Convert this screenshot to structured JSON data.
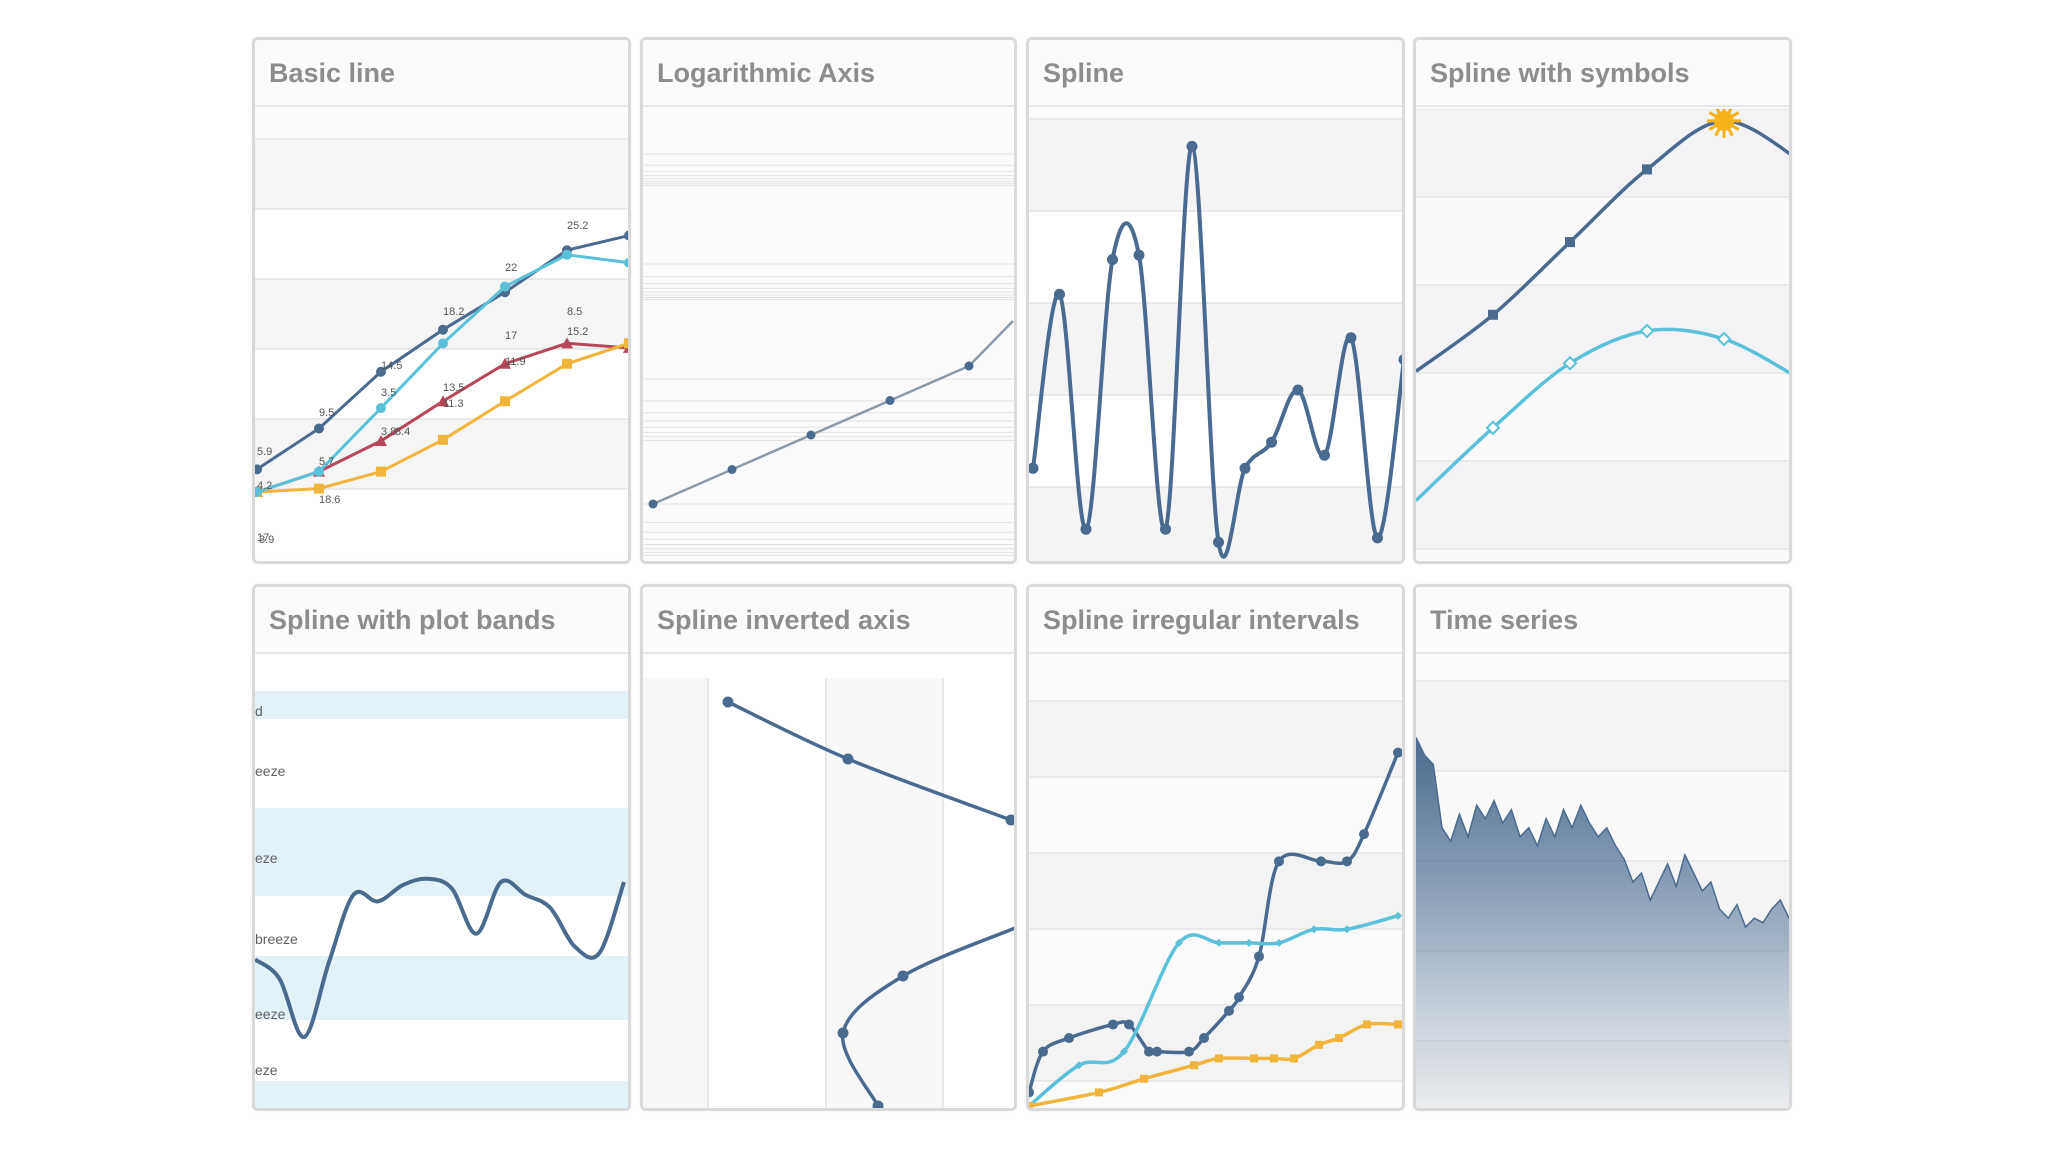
{
  "colors": {
    "navy": "#4a6a8f",
    "cyan": "#5bc0d8",
    "gold": "#f2b53c",
    "red": "#b5475a",
    "gray_line": "#8a9aa8",
    "band": "#e3f2f8",
    "sun": "#f5b21a"
  },
  "chart_data": [
    {
      "id": "basic",
      "type": "line",
      "title": "Basic line",
      "x": [
        0,
        1,
        2,
        3,
        4,
        5,
        6
      ],
      "ylim": [
        -2,
        35
      ],
      "grid": true,
      "series": [
        {
          "values": [
            3.9,
            5.7,
            8.4,
            11.9,
            15.2,
            17.0,
            16.6
          ],
          "marker": "triangle",
          "color": "#b5475a"
        },
        {
          "values": [
            3.9,
            4.2,
            5.7,
            8.5,
            11.9,
            15.2,
            17.0
          ],
          "marker": "square",
          "color": "#f2b53c"
        },
        {
          "values": [
            5.9,
            9.5,
            14.5,
            18.2,
            21.5,
            25.2,
            26.5
          ],
          "marker": "circle",
          "color": "#4a6a8f"
        },
        {
          "values": [
            3.9,
            5.7,
            11.3,
            17.0,
            22.0,
            24.8,
            24.1
          ],
          "marker": "circle",
          "color": "#5bc0d8"
        }
      ],
      "data_labels": [
        "5.9",
        "9.5",
        "14.5",
        "18.2",
        "22",
        "25.2",
        "4.2",
        "5.7",
        "8.5",
        "13.5",
        "17",
        "18.6",
        "3.5",
        "11.3",
        "11.9",
        "15.2",
        "17",
        "3.9",
        "3.8",
        "8.4"
      ]
    },
    {
      "id": "log",
      "type": "line",
      "title": "Logarithmic Axis",
      "yscale": "log",
      "x": [
        1,
        2,
        3,
        4,
        5
      ],
      "series": [
        {
          "values": [
            1,
            2,
            4,
            8,
            16
          ],
          "color": "#8a9aa8"
        }
      ]
    },
    {
      "id": "spline",
      "type": "line",
      "title": "Spline",
      "smooth": true,
      "ylim": [
        0,
        10
      ],
      "series": [
        {
          "values": [
            2.2,
            6.2,
            0.8,
            7.0,
            7.1,
            0.8,
            9.6,
            0.5,
            2.2,
            2.8,
            4.0,
            2.5,
            5.2,
            0.6,
            4.7
          ],
          "color": "#4a6a8f"
        }
      ]
    },
    {
      "id": "symbols",
      "type": "line",
      "title": "Spline with symbols",
      "smooth": true,
      "ylim": [
        -4,
        22
      ],
      "series": [
        {
          "values": [
            7.0,
            10.5,
            15.0,
            19.5,
            22.5,
            20.0
          ],
          "marker": "square",
          "special_marker": "sun",
          "color": "#4a6a8f"
        },
        {
          "values": [
            -1.0,
            3.5,
            7.5,
            9.5,
            9.0,
            6.5
          ],
          "marker": "diamond",
          "color": "#5bc0d8"
        }
      ]
    },
    {
      "id": "bands",
      "type": "line",
      "title": "Spline with plot bands",
      "smooth": true,
      "ylim": [
        0,
        14
      ],
      "band_labels": [
        "d",
        "eeze",
        "eze",
        "breeze",
        "eeze",
        "eze"
      ],
      "series": [
        {
          "values": [
            4.6,
            4.0,
            2.2,
            4.5,
            6.6,
            6.4,
            6.9,
            7.1,
            6.8,
            5.4,
            7.0,
            6.6,
            6.2,
            5.0,
            4.8,
            7.0
          ],
          "color": "#4a6a8f"
        }
      ]
    },
    {
      "id": "inverted",
      "type": "line",
      "title": "Spline inverted axis",
      "smooth": true,
      "inverted": true,
      "series": [
        {
          "values": [
            0,
            10,
            20,
            30,
            40,
            50
          ],
          "color": "#4a6a8f"
        }
      ]
    },
    {
      "id": "irregular",
      "type": "line",
      "title": "Spline irregular intervals",
      "smooth": true,
      "ylim": [
        0,
        3.2
      ],
      "series": [
        {
          "values": [
            0.1,
            0.4,
            0.5,
            0.6,
            0.6,
            0.4,
            0.4,
            0.4,
            0.5,
            0.7,
            0.8,
            1.1,
            1.8,
            1.8,
            1.8,
            2.0,
            2.6
          ],
          "color": "#4a6a8f"
        },
        {
          "values": [
            0.0,
            0.3,
            0.4,
            1.2,
            1.2,
            1.2,
            1.2,
            1.3,
            1.3,
            1.4
          ],
          "color": "#5bc0d8"
        },
        {
          "values": [
            0.0,
            0.1,
            0.2,
            0.3,
            0.35,
            0.35,
            0.35,
            0.35,
            0.45,
            0.5,
            0.6,
            0.6
          ],
          "color": "#f2b53c"
        }
      ]
    },
    {
      "id": "timeseries",
      "type": "area",
      "title": "Time series",
      "ylim": [
        0,
        1
      ],
      "series": [
        {
          "values": [
            0.82,
            0.78,
            0.76,
            0.62,
            0.59,
            0.65,
            0.6,
            0.67,
            0.64,
            0.68,
            0.63,
            0.66,
            0.6,
            0.62,
            0.58,
            0.64,
            0.6,
            0.66,
            0.62,
            0.67,
            0.63,
            0.6,
            0.62,
            0.58,
            0.55,
            0.5,
            0.52,
            0.46,
            0.5,
            0.54,
            0.49,
            0.56,
            0.52,
            0.48,
            0.5,
            0.44,
            0.42,
            0.45,
            0.4,
            0.42,
            0.41,
            0.44,
            0.46,
            0.42
          ],
          "color": "#4a6a8f"
        }
      ]
    }
  ]
}
